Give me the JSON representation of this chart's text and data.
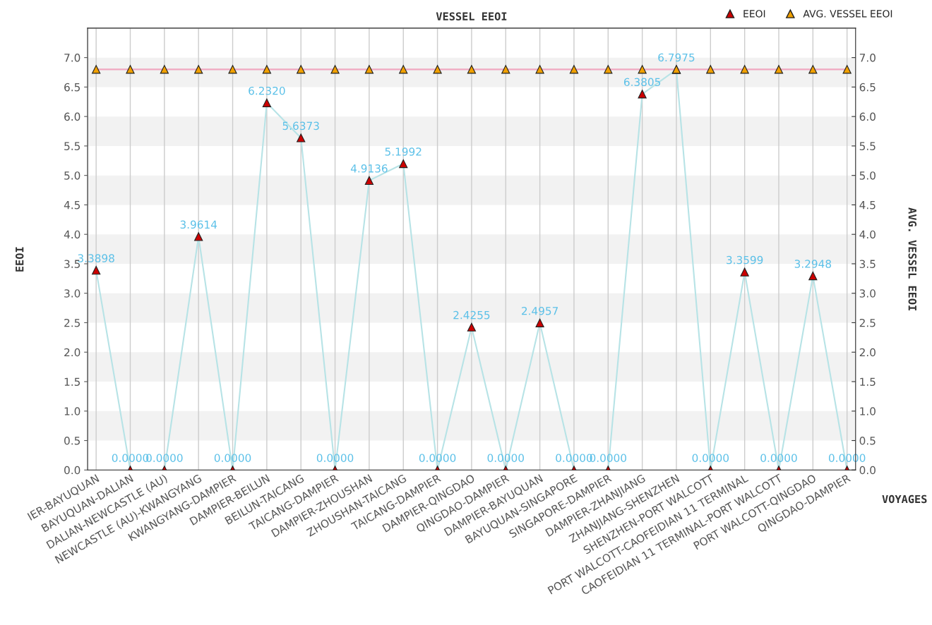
{
  "chart_data": {
    "type": "line",
    "title": "VESSEL EEOI",
    "xlabel": "VOYAGES",
    "ylabel": "EEOI",
    "y2label": "AVG. VESSEL EEOI",
    "categories": [
      "IER-BAYUQUAN",
      "BAYUQUAN-DALIAN",
      "DALIAN-NEWCASTLE (AU)",
      "NEWCASTLE (AU)-KWANGYANG",
      "KWANGYANG-DAMPIER",
      "DAMPIER-BEILUN",
      "BEILUN-TAICANG",
      "TAICANG-DAMPIER",
      "DAMPIER-ZHOUSHAN",
      "ZHOUSHAN-TAICANG",
      "TAICANG-DAMPIER",
      "DAMPIER-QINGDAO",
      "QINGDAO-DAMPIER",
      "DAMPIER-BAYUQUAN",
      "BAYUQUAN-SINGAPORE",
      "SINGAPORE-DAMPIER",
      "DAMPIER-ZHANJIANG",
      "ZHANJIANG-SHENZHEN",
      "SHENZHEN-PORT WALCOTT",
      "PORT WALCOTT-CAOFEIDIAN 11 TERMINAL",
      "CAOFEIDIAN 11 TERMINAL-PORT WALCOTT",
      "PORT WALCOTT-QINGDAO",
      "QINGDAO-DAMPIER"
    ],
    "series": [
      {
        "name": "EEOI",
        "color": "#cc0000",
        "values": [
          3.3898,
          0,
          0,
          3.9614,
          0,
          6.232,
          5.6373,
          0,
          4.9136,
          5.1992,
          0,
          2.4255,
          0,
          2.4957,
          0,
          0,
          6.3805,
          6.7975,
          0,
          3.3599,
          0,
          3.2948,
          0
        ],
        "value_labels": [
          "3.3898",
          "0.0000",
          "0.0000",
          "3.9614",
          "0.0000",
          "6.2320",
          "5.6373",
          "0.0000",
          "4.9136",
          "5.1992",
          "0.0000",
          "2.4255",
          "0.0000",
          "2.4957",
          "0.0000",
          "0.0000",
          "6.3805",
          "6.7975",
          "0.0000",
          "3.3599",
          "0.0000",
          "3.2948",
          "0.0000"
        ]
      },
      {
        "name": "AVG. VESSEL EEOI",
        "color": "#f0a000",
        "axis": "y2",
        "values": [
          6.8,
          6.8,
          6.8,
          6.8,
          6.8,
          6.8,
          6.8,
          6.8,
          6.8,
          6.8,
          6.8,
          6.8,
          6.8,
          6.8,
          6.8,
          6.8,
          6.8,
          6.8,
          6.8,
          6.8,
          6.8,
          6.8,
          6.8
        ]
      }
    ],
    "ylim": [
      0,
      7.5
    ],
    "yticks": [
      {
        "value": 0,
        "label": "0.0"
      },
      {
        "value": 0.5,
        "label": "0.5"
      },
      {
        "value": 1,
        "label": "1.0"
      },
      {
        "value": 1.5,
        "label": "1.5"
      },
      {
        "value": 2,
        "label": "2.0"
      },
      {
        "value": 2.5,
        "label": "2.5"
      },
      {
        "value": 3,
        "label": "3.0"
      },
      {
        "value": 3.5,
        "label": "3.5"
      },
      {
        "value": 4,
        "label": "4.0"
      },
      {
        "value": 4.5,
        "label": "4.5"
      },
      {
        "value": 5,
        "label": "5.0"
      },
      {
        "value": 5.5,
        "label": "5.5"
      },
      {
        "value": 6,
        "label": "6.0"
      },
      {
        "value": 6.5,
        "label": "6.5"
      },
      {
        "value": 7,
        "label": "7.0"
      }
    ],
    "y2lim": [
      0,
      7.5
    ],
    "y2ticks": [
      {
        "value": 0,
        "label": "0.0"
      },
      {
        "value": 0.5,
        "label": "0.5"
      },
      {
        "value": 1,
        "label": "1.0"
      },
      {
        "value": 1.5,
        "label": "1.5"
      },
      {
        "value": 2,
        "label": "2.0"
      },
      {
        "value": 2.5,
        "label": "2.5"
      },
      {
        "value": 3,
        "label": "3.0"
      },
      {
        "value": 3.5,
        "label": "3.5"
      },
      {
        "value": 4,
        "label": "4.0"
      },
      {
        "value": 4.5,
        "label": "4.5"
      },
      {
        "value": 5,
        "label": "5.0"
      },
      {
        "value": 5.5,
        "label": "5.5"
      },
      {
        "value": 6,
        "label": "6.0"
      },
      {
        "value": 6.5,
        "label": "6.5"
      },
      {
        "value": 7,
        "label": "7.0"
      }
    ],
    "marker": "triangle",
    "grid": true,
    "legend": "top right"
  }
}
